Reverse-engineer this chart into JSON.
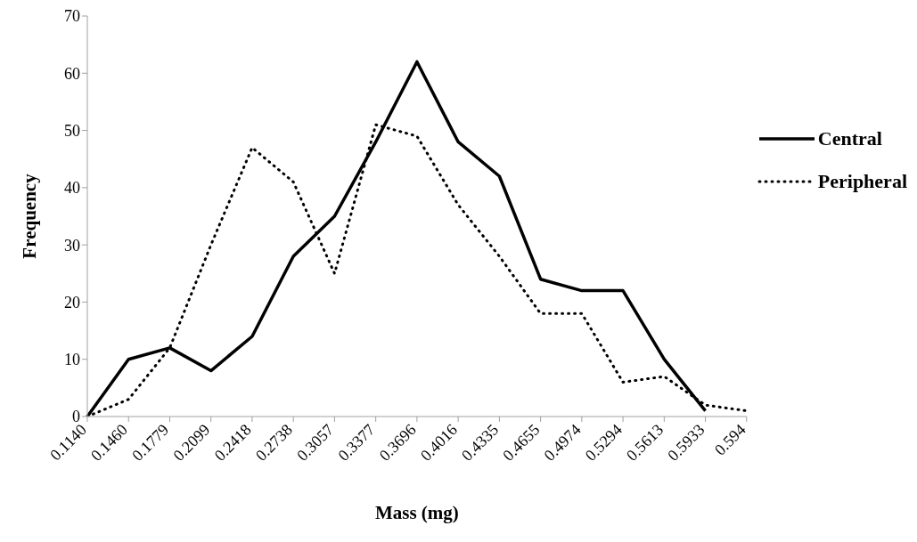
{
  "chart_data": {
    "type": "line",
    "xlabel": "Mass (mg)",
    "ylabel": "Frequency",
    "categories": [
      "0.1140",
      "0.1460",
      "0.1779",
      "0.2099",
      "0.2418",
      "0.2738",
      "0.3057",
      "0.3377",
      "0.3696",
      "0.4016",
      "0.4335",
      "0.4655",
      "0.4974",
      "0.5294",
      "0.5613",
      "0.5933",
      "0.594"
    ],
    "series": [
      {
        "name": "Central",
        "color": "#000000",
        "line_style": "solid",
        "values": [
          0,
          10,
          12,
          8,
          14,
          28,
          35,
          48,
          62,
          48,
          42,
          24,
          22,
          22,
          10,
          1,
          null
        ]
      },
      {
        "name": "Peripheral",
        "color": "#000000",
        "line_style": "dotted",
        "values": [
          0,
          3,
          12,
          30,
          47,
          41,
          25,
          51,
          49,
          37,
          28,
          18,
          18,
          6,
          7,
          2,
          1
        ]
      }
    ],
    "ylim": [
      0,
      70
    ],
    "yticks": [
      0,
      10,
      20,
      30,
      40,
      50,
      60,
      70
    ],
    "grid": false,
    "legend": "right",
    "marker": "none"
  }
}
